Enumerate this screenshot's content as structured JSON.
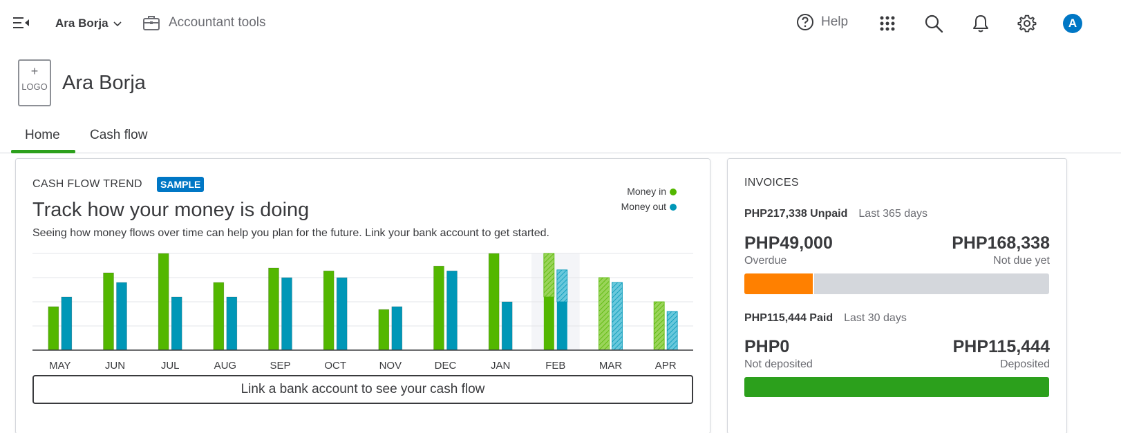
{
  "header": {
    "company_switch": "Ara Borja",
    "accountant_tools": "Accountant tools",
    "help": "Help",
    "avatar_initial": "A"
  },
  "company": {
    "logo_plus": "+",
    "logo_label": "LOGO",
    "name": "Ara Borja"
  },
  "tabs": [
    {
      "label": "Home",
      "active": true
    },
    {
      "label": "Cash flow",
      "active": false
    }
  ],
  "cash_flow": {
    "label": "CASH FLOW TREND",
    "badge": "SAMPLE",
    "title": "Track how your money is doing",
    "description": "Seeing how money flows over time can help you plan for the future. Link your bank account to get started.",
    "legend_in": "Money in",
    "legend_out": "Money out",
    "link_button": "Link a bank account to see your cash flow"
  },
  "chart_data": {
    "type": "bar",
    "categories": [
      "MAY",
      "JUN",
      "JUL",
      "AUG",
      "SEP",
      "OCT",
      "NOV",
      "DEC",
      "JAN",
      "FEB",
      "MAR",
      "APR"
    ],
    "series": [
      {
        "name": "Money in",
        "values": [
          45,
          80,
          100,
          70,
          85,
          82,
          42,
          87,
          100,
          100,
          75,
          50
        ]
      },
      {
        "name": "Money out",
        "values": [
          55,
          70,
          55,
          55,
          75,
          75,
          45,
          82,
          50,
          83,
          70,
          40
        ]
      }
    ],
    "projected_in_from": [
      null,
      null,
      null,
      null,
      null,
      null,
      null,
      null,
      null,
      55,
      0,
      0
    ],
    "projected_out_from": [
      null,
      null,
      null,
      null,
      null,
      null,
      null,
      null,
      null,
      50,
      0,
      0
    ],
    "highlight_category": "FEB",
    "ylim": [
      0,
      100
    ],
    "grid": true,
    "colors": {
      "money_in": "#53b700",
      "money_out": "#0097b7",
      "projected_in": "#9ad45a",
      "projected_out": "#69c8dc",
      "highlight": "#f4f5f8"
    }
  },
  "invoices": {
    "label": "INVOICES",
    "unpaid_amount": "PHP217,338 Unpaid",
    "unpaid_period": "Last 365 days",
    "overdue_amount": "PHP49,000",
    "overdue_label": "Overdue",
    "not_due_amount": "PHP168,338",
    "not_due_label": "Not due yet",
    "overdue_fraction": 0.225,
    "paid_amount": "PHP115,444 Paid",
    "paid_period": "Last 30 days",
    "not_deposited_amount": "PHP0",
    "not_deposited_label": "Not deposited",
    "deposited_amount": "PHP115,444",
    "deposited_label": "Deposited",
    "deposited_fraction": 1.0,
    "colors": {
      "overdue": "#ff8000",
      "not_due": "#d4d7dc",
      "deposited": "#2ca01c"
    }
  }
}
